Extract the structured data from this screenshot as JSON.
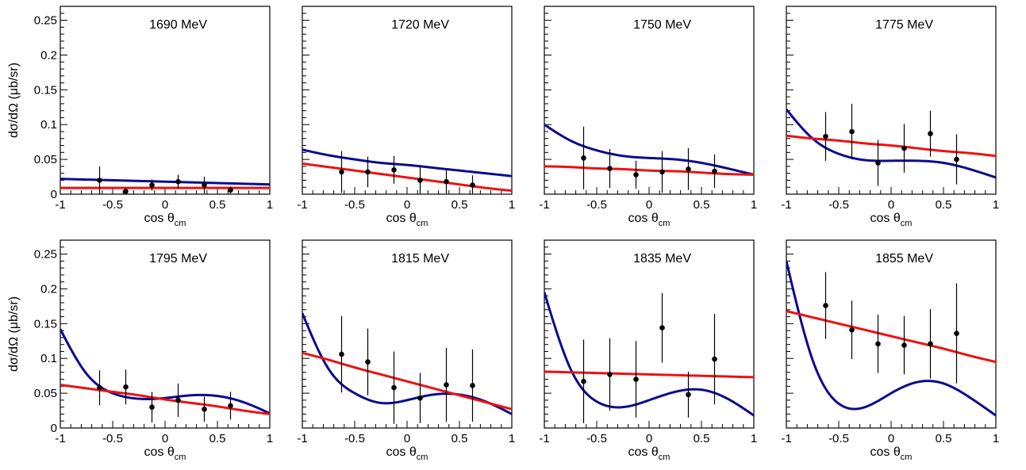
{
  "chart_data": {
    "type": "scatter",
    "layout": "2x4 grid",
    "ylabel": "dσ/dΩ (μb/sr)",
    "xlabel": "cos θ",
    "xlabel_sub": "cm",
    "xlim": [
      -1,
      1
    ],
    "ylim": [
      0,
      0.27
    ],
    "xticks": [
      "-1",
      "-0.5",
      "0",
      "0.5",
      "1"
    ],
    "yticks": [
      "0",
      "0.05",
      "0.1",
      "0.15",
      "0.2",
      "0.25"
    ],
    "x": [
      -0.625,
      -0.375,
      -0.125,
      0.125,
      0.375,
      0.625
    ],
    "curve_x": [
      -1,
      -0.75,
      -0.5,
      -0.25,
      0,
      0.25,
      0.5,
      0.75,
      1
    ],
    "colors": {
      "blue_curve": "#0b0b8f",
      "red_curve": "#ee1111",
      "points": "#000000"
    },
    "panels": [
      {
        "label": "1690 MeV",
        "y": [
          0.02,
          0.004,
          0.013,
          0.018,
          0.013,
          0.006
        ],
        "err": [
          0.02,
          0.005,
          0.008,
          0.01,
          0.012,
          0.005
        ],
        "blue": [
          0.022,
          0.021,
          0.02,
          0.019,
          0.018,
          0.017,
          0.016,
          0.015,
          0.014
        ],
        "red": [
          0.009,
          0.009,
          0.009,
          0.009,
          0.009,
          0.009,
          0.009,
          0.009,
          0.009
        ]
      },
      {
        "label": "1720 MeV",
        "y": [
          0.032,
          0.032,
          0.035,
          0.02,
          0.018,
          0.013
        ],
        "err": [
          0.03,
          0.022,
          0.02,
          0.02,
          0.017,
          0.014
        ],
        "blue": [
          0.064,
          0.056,
          0.05,
          0.045,
          0.042,
          0.038,
          0.034,
          0.03,
          0.026
        ],
        "red": [
          0.044,
          0.039,
          0.034,
          0.029,
          0.024,
          0.019,
          0.014,
          0.009,
          0.005
        ]
      },
      {
        "label": "1750 MeV",
        "y": [
          0.052,
          0.037,
          0.028,
          0.032,
          0.036,
          0.033
        ],
        "err": [
          0.045,
          0.028,
          0.02,
          0.03,
          0.03,
          0.024
        ],
        "blue": [
          0.1,
          0.077,
          0.063,
          0.055,
          0.052,
          0.05,
          0.045,
          0.037,
          0.028
        ],
        "red": [
          0.04,
          0.039,
          0.037,
          0.036,
          0.034,
          0.033,
          0.031,
          0.029,
          0.028
        ]
      },
      {
        "label": "1775 MeV",
        "y": [
          0.083,
          0.09,
          0.045,
          0.066,
          0.087,
          0.05
        ],
        "err": [
          0.035,
          0.04,
          0.033,
          0.035,
          0.033,
          0.036
        ],
        "blue": [
          0.122,
          0.08,
          0.058,
          0.049,
          0.048,
          0.048,
          0.045,
          0.036,
          0.024
        ],
        "red": [
          0.084,
          0.08,
          0.077,
          0.073,
          0.07,
          0.066,
          0.062,
          0.059,
          0.055
        ]
      },
      {
        "label": "1795 MeV",
        "y": [
          0.058,
          0.059,
          0.03,
          0.04,
          0.027,
          0.032
        ],
        "err": [
          0.025,
          0.025,
          0.022,
          0.024,
          0.018,
          0.02
        ],
        "blue": [
          0.142,
          0.078,
          0.05,
          0.042,
          0.043,
          0.047,
          0.046,
          0.037,
          0.021
        ],
        "red": [
          0.062,
          0.057,
          0.052,
          0.047,
          0.041,
          0.036,
          0.031,
          0.025,
          0.02
        ]
      },
      {
        "label": "1815 MeV",
        "y": [
          0.106,
          0.095,
          0.058,
          0.043,
          0.062,
          0.061
        ],
        "err": [
          0.055,
          0.048,
          0.052,
          0.036,
          0.053,
          0.052
        ],
        "blue": [
          0.165,
          0.085,
          0.05,
          0.036,
          0.04,
          0.048,
          0.048,
          0.038,
          0.02
        ],
        "red": [
          0.108,
          0.098,
          0.087,
          0.077,
          0.067,
          0.057,
          0.047,
          0.037,
          0.027
        ]
      },
      {
        "label": "1835 MeV",
        "y": [
          0.067,
          0.077,
          0.07,
          0.144,
          0.048,
          0.099
        ],
        "err": [
          0.06,
          0.052,
          0.055,
          0.05,
          0.033,
          0.065
        ],
        "blue": [
          0.195,
          0.085,
          0.038,
          0.03,
          0.04,
          0.052,
          0.055,
          0.042,
          0.018
        ],
        "red": [
          0.081,
          0.08,
          0.079,
          0.078,
          0.077,
          0.076,
          0.075,
          0.074,
          0.073
        ]
      },
      {
        "label": "1855 MeV",
        "y": [
          0.176,
          0.141,
          0.121,
          0.119,
          0.121,
          0.136
        ],
        "err": [
          0.048,
          0.042,
          0.042,
          0.042,
          0.05,
          0.072
        ],
        "blue": [
          0.24,
          0.098,
          0.035,
          0.03,
          0.05,
          0.066,
          0.064,
          0.044,
          0.018
        ],
        "red": [
          0.168,
          0.159,
          0.15,
          0.141,
          0.132,
          0.123,
          0.114,
          0.104,
          0.095
        ]
      }
    ]
  }
}
